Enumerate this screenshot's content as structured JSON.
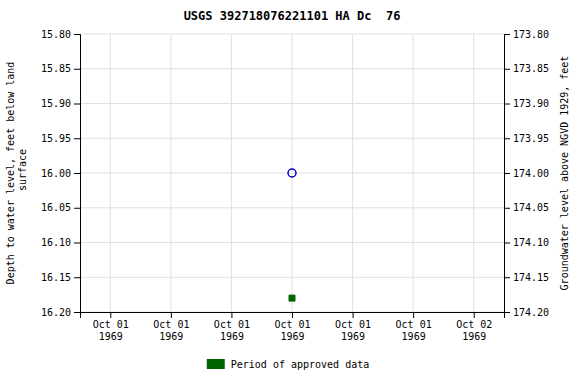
{
  "chart_data": {
    "type": "scatter",
    "title": "USGS 392718076221101 HA Dc  76",
    "y_label": "Depth to water level, feet below land\n surface",
    "y2_label": "Groundwater level above NGVD 1929, feet",
    "categories": [
      "Oct 01\n1969",
      "Oct 01\n1969",
      "Oct 01\n1969",
      "Oct 01\n1969",
      "Oct 01\n1969",
      "Oct 01\n1969",
      "Oct 02\n1969"
    ],
    "series": [
      {
        "color": "#0000cc",
        "marker": "circle-open",
        "values": [
          null,
          null,
          null,
          16.0,
          null,
          null,
          null
        ]
      },
      {
        "name": "Period of approved data",
        "color": "#006400",
        "marker": "square",
        "values": [
          null,
          null,
          null,
          16.18,
          null,
          null,
          null
        ]
      }
    ],
    "ylim": [
      16.2,
      15.8
    ],
    "yticks": [
      {
        "value": 15.8,
        "label": "15.80"
      },
      {
        "value": 15.85,
        "label": "15.85"
      },
      {
        "value": 15.9,
        "label": "15.90"
      },
      {
        "value": 15.95,
        "label": "15.95"
      },
      {
        "value": 16.0,
        "label": "16.00"
      },
      {
        "value": 16.05,
        "label": "16.05"
      },
      {
        "value": 16.1,
        "label": "16.10"
      },
      {
        "value": 16.15,
        "label": "16.15"
      },
      {
        "value": 16.2,
        "label": "16.20"
      }
    ],
    "y2lim": [
      174.2,
      173.8
    ],
    "y2ticks": [
      {
        "value": 173.8,
        "label": "173.80"
      },
      {
        "value": 173.85,
        "label": "173.85"
      },
      {
        "value": 173.9,
        "label": "173.90"
      },
      {
        "value": 173.95,
        "label": "173.95"
      },
      {
        "value": 174.0,
        "label": "174.00"
      },
      {
        "value": 174.05,
        "label": "174.05"
      },
      {
        "value": 174.1,
        "label": "174.10"
      },
      {
        "value": 174.15,
        "label": "174.15"
      },
      {
        "value": 174.2,
        "label": "174.20"
      }
    ],
    "grid": true,
    "legend": "bottom"
  }
}
